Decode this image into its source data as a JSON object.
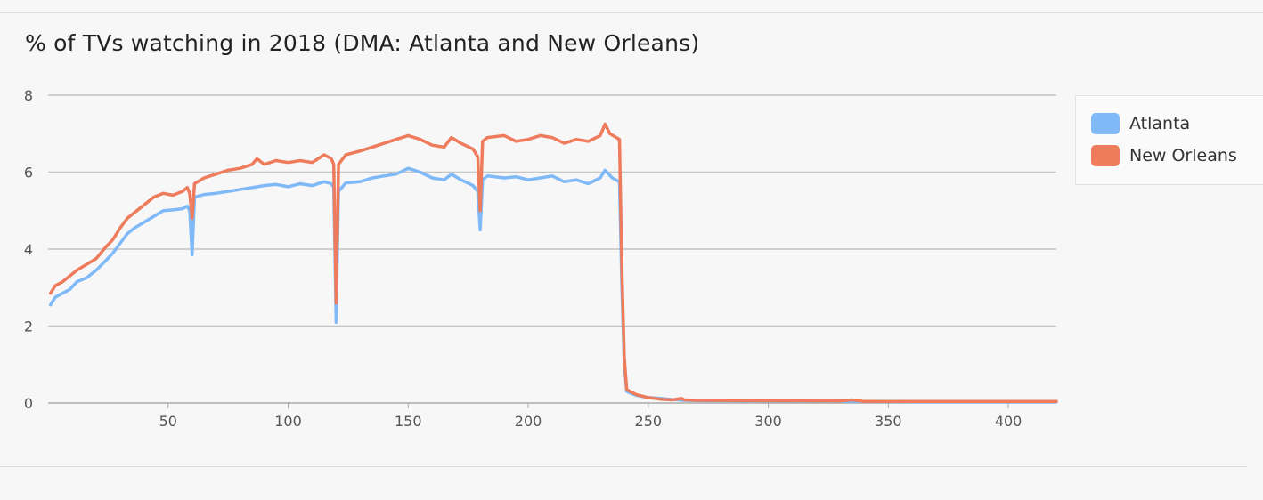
{
  "header": {
    "title": "% of TVs watching in 2018 (DMA: Atlanta and New Orleans)"
  },
  "legend": {
    "items": [
      {
        "label": "Atlanta",
        "color": "#7fb9f7"
      },
      {
        "label": "New Orleans",
        "color": "#ee7c5c"
      }
    ]
  },
  "chart_data": {
    "type": "line",
    "title": "% of TVs watching in 2018 (DMA: Atlanta and New Orleans)",
    "xlabel": "",
    "ylabel": "",
    "xlim": [
      0,
      420
    ],
    "ylim": [
      0,
      8
    ],
    "xticks": [
      50,
      100,
      150,
      200,
      250,
      300,
      350,
      400
    ],
    "yticks": [
      0,
      2,
      4,
      6,
      8
    ],
    "grid": "horizontal",
    "legend_position": "right",
    "series": [
      {
        "name": "Atlanta",
        "color": "#7fb9f7",
        "points": [
          [
            1,
            2.55
          ],
          [
            3,
            2.75
          ],
          [
            6,
            2.85
          ],
          [
            9,
            2.95
          ],
          [
            12,
            3.15
          ],
          [
            16,
            3.25
          ],
          [
            20,
            3.45
          ],
          [
            24,
            3.7
          ],
          [
            27,
            3.9
          ],
          [
            30,
            4.15
          ],
          [
            33,
            4.4
          ],
          [
            36,
            4.55
          ],
          [
            40,
            4.7
          ],
          [
            44,
            4.85
          ],
          [
            48,
            5.0
          ],
          [
            52,
            5.02
          ],
          [
            56,
            5.05
          ],
          [
            58,
            5.12
          ],
          [
            59,
            5.0
          ],
          [
            60,
            3.85
          ],
          [
            61,
            5.35
          ],
          [
            65,
            5.42
          ],
          [
            70,
            5.45
          ],
          [
            75,
            5.5
          ],
          [
            80,
            5.55
          ],
          [
            85,
            5.6
          ],
          [
            90,
            5.65
          ],
          [
            95,
            5.68
          ],
          [
            100,
            5.62
          ],
          [
            105,
            5.7
          ],
          [
            110,
            5.65
          ],
          [
            115,
            5.75
          ],
          [
            118,
            5.7
          ],
          [
            119,
            5.6
          ],
          [
            120,
            2.1
          ],
          [
            121,
            5.5
          ],
          [
            124,
            5.72
          ],
          [
            130,
            5.75
          ],
          [
            135,
            5.85
          ],
          [
            140,
            5.9
          ],
          [
            145,
            5.95
          ],
          [
            150,
            6.1
          ],
          [
            155,
            6.0
          ],
          [
            160,
            5.85
          ],
          [
            165,
            5.8
          ],
          [
            168,
            5.95
          ],
          [
            172,
            5.8
          ],
          [
            177,
            5.65
          ],
          [
            179,
            5.5
          ],
          [
            180,
            4.5
          ],
          [
            181,
            5.8
          ],
          [
            183,
            5.9
          ],
          [
            190,
            5.85
          ],
          [
            195,
            5.88
          ],
          [
            200,
            5.8
          ],
          [
            205,
            5.85
          ],
          [
            210,
            5.9
          ],
          [
            215,
            5.75
          ],
          [
            220,
            5.8
          ],
          [
            225,
            5.7
          ],
          [
            230,
            5.85
          ],
          [
            232,
            6.05
          ],
          [
            235,
            5.85
          ],
          [
            238,
            5.75
          ],
          [
            239,
            3.0
          ],
          [
            240,
            1.0
          ],
          [
            241,
            0.3
          ],
          [
            245,
            0.2
          ],
          [
            250,
            0.14
          ],
          [
            255,
            0.12
          ],
          [
            260,
            0.09
          ],
          [
            265,
            0.07
          ],
          [
            270,
            0.06
          ],
          [
            300,
            0.05
          ],
          [
            330,
            0.04
          ],
          [
            360,
            0.03
          ],
          [
            390,
            0.03
          ],
          [
            420,
            0.03
          ]
        ]
      },
      {
        "name": "New Orleans",
        "color": "#ee7c5c",
        "points": [
          [
            1,
            2.85
          ],
          [
            3,
            3.05
          ],
          [
            6,
            3.15
          ],
          [
            9,
            3.3
          ],
          [
            12,
            3.45
          ],
          [
            16,
            3.6
          ],
          [
            20,
            3.75
          ],
          [
            24,
            4.05
          ],
          [
            27,
            4.25
          ],
          [
            30,
            4.55
          ],
          [
            33,
            4.8
          ],
          [
            36,
            4.95
          ],
          [
            40,
            5.15
          ],
          [
            44,
            5.35
          ],
          [
            48,
            5.45
          ],
          [
            52,
            5.4
          ],
          [
            56,
            5.5
          ],
          [
            58,
            5.6
          ],
          [
            59,
            5.45
          ],
          [
            60,
            4.8
          ],
          [
            61,
            5.7
          ],
          [
            65,
            5.85
          ],
          [
            70,
            5.95
          ],
          [
            75,
            6.05
          ],
          [
            80,
            6.1
          ],
          [
            85,
            6.2
          ],
          [
            87,
            6.35
          ],
          [
            90,
            6.2
          ],
          [
            95,
            6.3
          ],
          [
            100,
            6.25
          ],
          [
            105,
            6.3
          ],
          [
            110,
            6.25
          ],
          [
            115,
            6.45
          ],
          [
            118,
            6.35
          ],
          [
            119,
            6.2
          ],
          [
            120,
            2.6
          ],
          [
            121,
            6.2
          ],
          [
            124,
            6.45
          ],
          [
            130,
            6.55
          ],
          [
            135,
            6.65
          ],
          [
            140,
            6.75
          ],
          [
            145,
            6.85
          ],
          [
            150,
            6.95
          ],
          [
            155,
            6.85
          ],
          [
            160,
            6.7
          ],
          [
            165,
            6.65
          ],
          [
            168,
            6.9
          ],
          [
            172,
            6.75
          ],
          [
            177,
            6.6
          ],
          [
            179,
            6.4
          ],
          [
            180,
            5.0
          ],
          [
            181,
            6.8
          ],
          [
            183,
            6.9
          ],
          [
            190,
            6.95
          ],
          [
            195,
            6.8
          ],
          [
            200,
            6.85
          ],
          [
            205,
            6.95
          ],
          [
            210,
            6.9
          ],
          [
            215,
            6.75
          ],
          [
            220,
            6.85
          ],
          [
            225,
            6.8
          ],
          [
            230,
            6.95
          ],
          [
            232,
            7.25
          ],
          [
            234,
            7.0
          ],
          [
            238,
            6.85
          ],
          [
            239,
            3.5
          ],
          [
            240,
            1.2
          ],
          [
            241,
            0.35
          ],
          [
            245,
            0.22
          ],
          [
            250,
            0.14
          ],
          [
            255,
            0.1
          ],
          [
            260,
            0.08
          ],
          [
            264,
            0.12
          ],
          [
            265,
            0.08
          ],
          [
            270,
            0.07
          ],
          [
            300,
            0.06
          ],
          [
            330,
            0.05
          ],
          [
            335,
            0.08
          ],
          [
            340,
            0.04
          ],
          [
            370,
            0.04
          ],
          [
            400,
            0.04
          ],
          [
            420,
            0.04
          ]
        ]
      }
    ]
  }
}
